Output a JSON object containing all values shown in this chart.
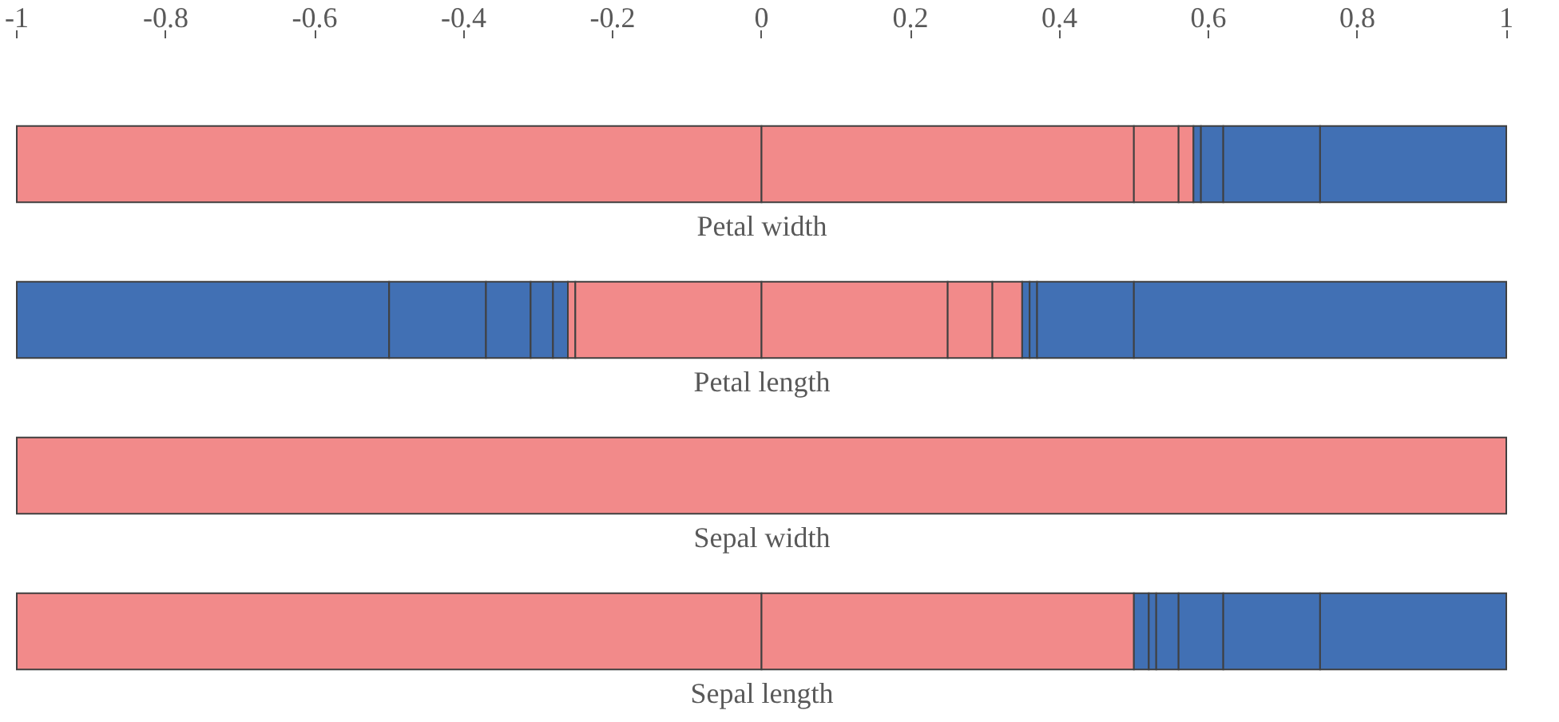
{
  "chart_data": {
    "type": "bar",
    "orientation": "horizontal",
    "categories": [
      "Petal width",
      "Petal length",
      "Sepal width",
      "Sepal length"
    ],
    "xlim": [
      -1,
      1
    ],
    "xticks": [
      -1,
      -0.8,
      -0.6,
      -0.4,
      -0.2,
      0,
      0.2,
      0.4,
      0.6,
      0.8,
      1
    ],
    "series": [
      {
        "base": [
          -1,
          -1,
          -1,
          -1
        ],
        "values": [
          1,
          0.5,
          2,
          1
        ],
        "colors": [
          "#f28a8a",
          "#4170b4",
          "#f28a8a",
          "#f28a8a"
        ]
      },
      {
        "base": [
          0,
          -0.5,
          null,
          0
        ],
        "values": [
          0.5,
          0.13,
          null,
          0.5
        ],
        "colors": [
          "#f28a8a",
          "#4170b4",
          null,
          "#f28a8a"
        ]
      },
      {
        "base": [
          0.5,
          -0.37,
          null,
          0.5
        ],
        "values": [
          0.06,
          0.06,
          null,
          0.02
        ],
        "colors": [
          "#f28a8a",
          "#4170b4",
          null,
          "#4170b4"
        ]
      },
      {
        "base": [
          0.56,
          -0.31,
          null,
          0.52
        ],
        "values": [
          0.02,
          0.03,
          null,
          0.01
        ],
        "colors": [
          "#f28a8a",
          "#4170b4",
          null,
          "#4170b4"
        ]
      },
      {
        "base": [
          0.58,
          -0.28,
          null,
          0.53
        ],
        "values": [
          0.01,
          0.02,
          null,
          0.03
        ],
        "colors": [
          "#4170b4",
          "#4170b4",
          null,
          "#4170b4"
        ]
      },
      {
        "base": [
          0.59,
          -0.26,
          null,
          0.56
        ],
        "values": [
          0.03,
          0.01,
          null,
          0.06
        ],
        "colors": [
          "#4170b4",
          "#f28a8a",
          null,
          "#4170b4"
        ]
      },
      {
        "base": [
          0.62,
          -0.25,
          null,
          0.62
        ],
        "values": [
          0.13,
          0.25,
          null,
          0.13
        ],
        "colors": [
          "#4170b4",
          "#f28a8a",
          null,
          "#4170b4"
        ]
      },
      {
        "base": [
          0.75,
          0,
          null,
          0.75
        ],
        "values": [
          0.25,
          0.25,
          null,
          0.25
        ],
        "colors": [
          "#4170b4",
          "#f28a8a",
          null,
          "#4170b4"
        ]
      },
      {
        "base": [
          null,
          0.25,
          null,
          null
        ],
        "values": [
          null,
          0.06,
          null,
          null
        ],
        "colors": [
          null,
          "#f28a8a",
          null,
          null
        ]
      },
      {
        "base": [
          null,
          0.31,
          null,
          null
        ],
        "values": [
          null,
          0.04,
          null,
          null
        ],
        "colors": [
          null,
          "#f28a8a",
          null,
          null
        ]
      },
      {
        "base": [
          null,
          0.35,
          null,
          null
        ],
        "values": [
          null,
          0.01,
          null,
          null
        ],
        "colors": [
          null,
          "#4170b4",
          null,
          null
        ]
      },
      {
        "base": [
          null,
          0.36,
          null,
          null
        ],
        "values": [
          null,
          0.01,
          null,
          null
        ],
        "colors": [
          null,
          "#4170b4",
          null,
          null
        ]
      },
      {
        "base": [
          null,
          0.37,
          null,
          null
        ],
        "values": [
          null,
          0.13,
          null,
          null
        ],
        "colors": [
          null,
          "#4170b4",
          null,
          null
        ]
      },
      {
        "base": [
          null,
          0.5,
          null,
          null
        ],
        "values": [
          null,
          0.5,
          null,
          null
        ],
        "colors": [
          null,
          "#4170b4",
          null,
          null
        ]
      }
    ]
  }
}
